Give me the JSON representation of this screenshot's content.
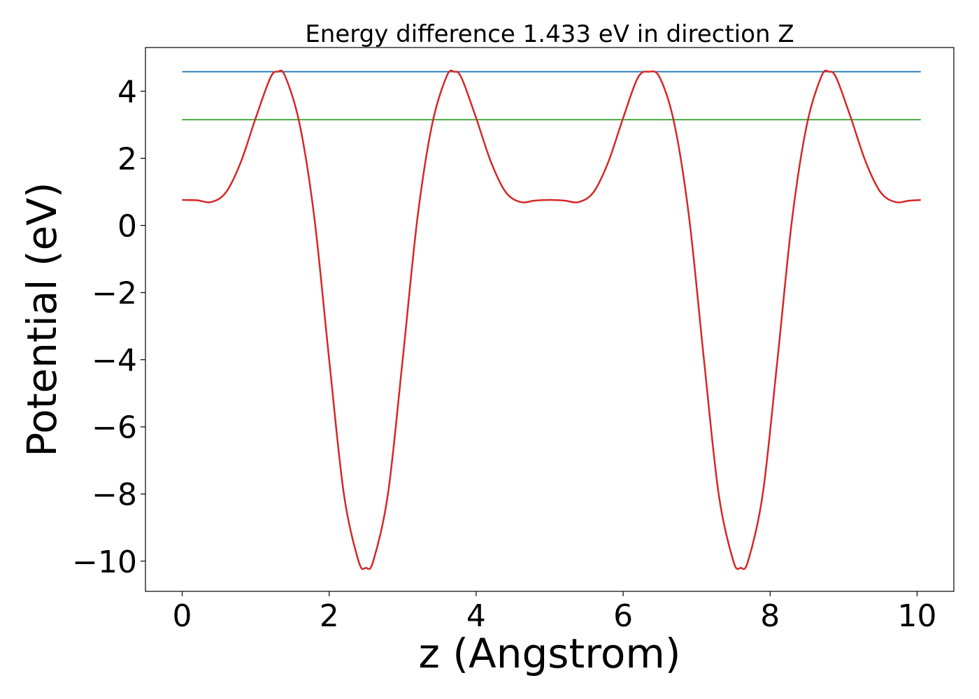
{
  "chart_data": {
    "type": "line",
    "title": "Energy difference 1.433 eV in direction Z",
    "xlabel": "z (Angstrom)",
    "ylabel": "Potential (eV)",
    "xlim": [
      -0.5,
      10.5
    ],
    "ylim": [
      -10.9,
      5.3
    ],
    "xticks": [
      0,
      2,
      4,
      6,
      8,
      10
    ],
    "yticks": [
      4,
      2,
      0,
      -2,
      -4,
      -6,
      -8,
      -10
    ],
    "xtick_labels": [
      "0",
      "2",
      "4",
      "6",
      "8",
      "10"
    ],
    "ytick_labels": [
      "4",
      "2",
      "0",
      "−2",
      "−4",
      "−6",
      "−8",
      "−10"
    ],
    "grid": false,
    "legend": "none",
    "series": [
      {
        "color": "#d62728",
        "x": [
          0.0,
          0.2,
          0.4,
          0.6,
          0.8,
          1.0,
          1.2,
          1.3,
          1.4,
          1.6,
          1.8,
          2.0,
          2.2,
          2.4,
          2.5,
          2.6,
          2.8,
          3.0,
          3.2,
          3.4,
          3.6,
          3.7,
          3.8,
          4.0,
          4.2,
          4.4,
          4.6,
          4.8,
          5.0,
          5.2,
          5.4,
          5.6,
          5.8,
          6.0,
          6.2,
          6.35,
          6.5,
          6.7,
          6.9,
          7.1,
          7.3,
          7.5,
          7.6,
          7.7,
          7.9,
          8.1,
          8.3,
          8.5,
          8.7,
          8.8,
          8.9,
          9.1,
          9.3,
          9.5,
          9.7,
          9.9,
          10.05
        ],
        "y": [
          0.76,
          0.75,
          0.7,
          1.0,
          1.9,
          3.2,
          4.4,
          4.58,
          4.45,
          3.0,
          0.2,
          -4.0,
          -8.0,
          -10.0,
          -10.2,
          -10.0,
          -8.0,
          -4.0,
          0.2,
          3.0,
          4.45,
          4.58,
          4.4,
          3.2,
          1.9,
          1.0,
          0.7,
          0.74,
          0.76,
          0.74,
          0.7,
          1.0,
          1.9,
          3.2,
          4.4,
          4.58,
          4.4,
          3.0,
          0.2,
          -4.0,
          -8.0,
          -10.0,
          -10.2,
          -10.0,
          -8.0,
          -4.0,
          0.2,
          3.0,
          4.45,
          4.58,
          4.4,
          3.2,
          1.9,
          1.0,
          0.7,
          0.74,
          0.76
        ]
      },
      {
        "color": "#1f77b4",
        "x": [
          0.0,
          10.05
        ],
        "y": [
          4.58,
          4.58
        ]
      },
      {
        "color": "#2ca02c",
        "x": [
          0.0,
          10.05
        ],
        "y": [
          3.15,
          3.15
        ]
      }
    ]
  }
}
